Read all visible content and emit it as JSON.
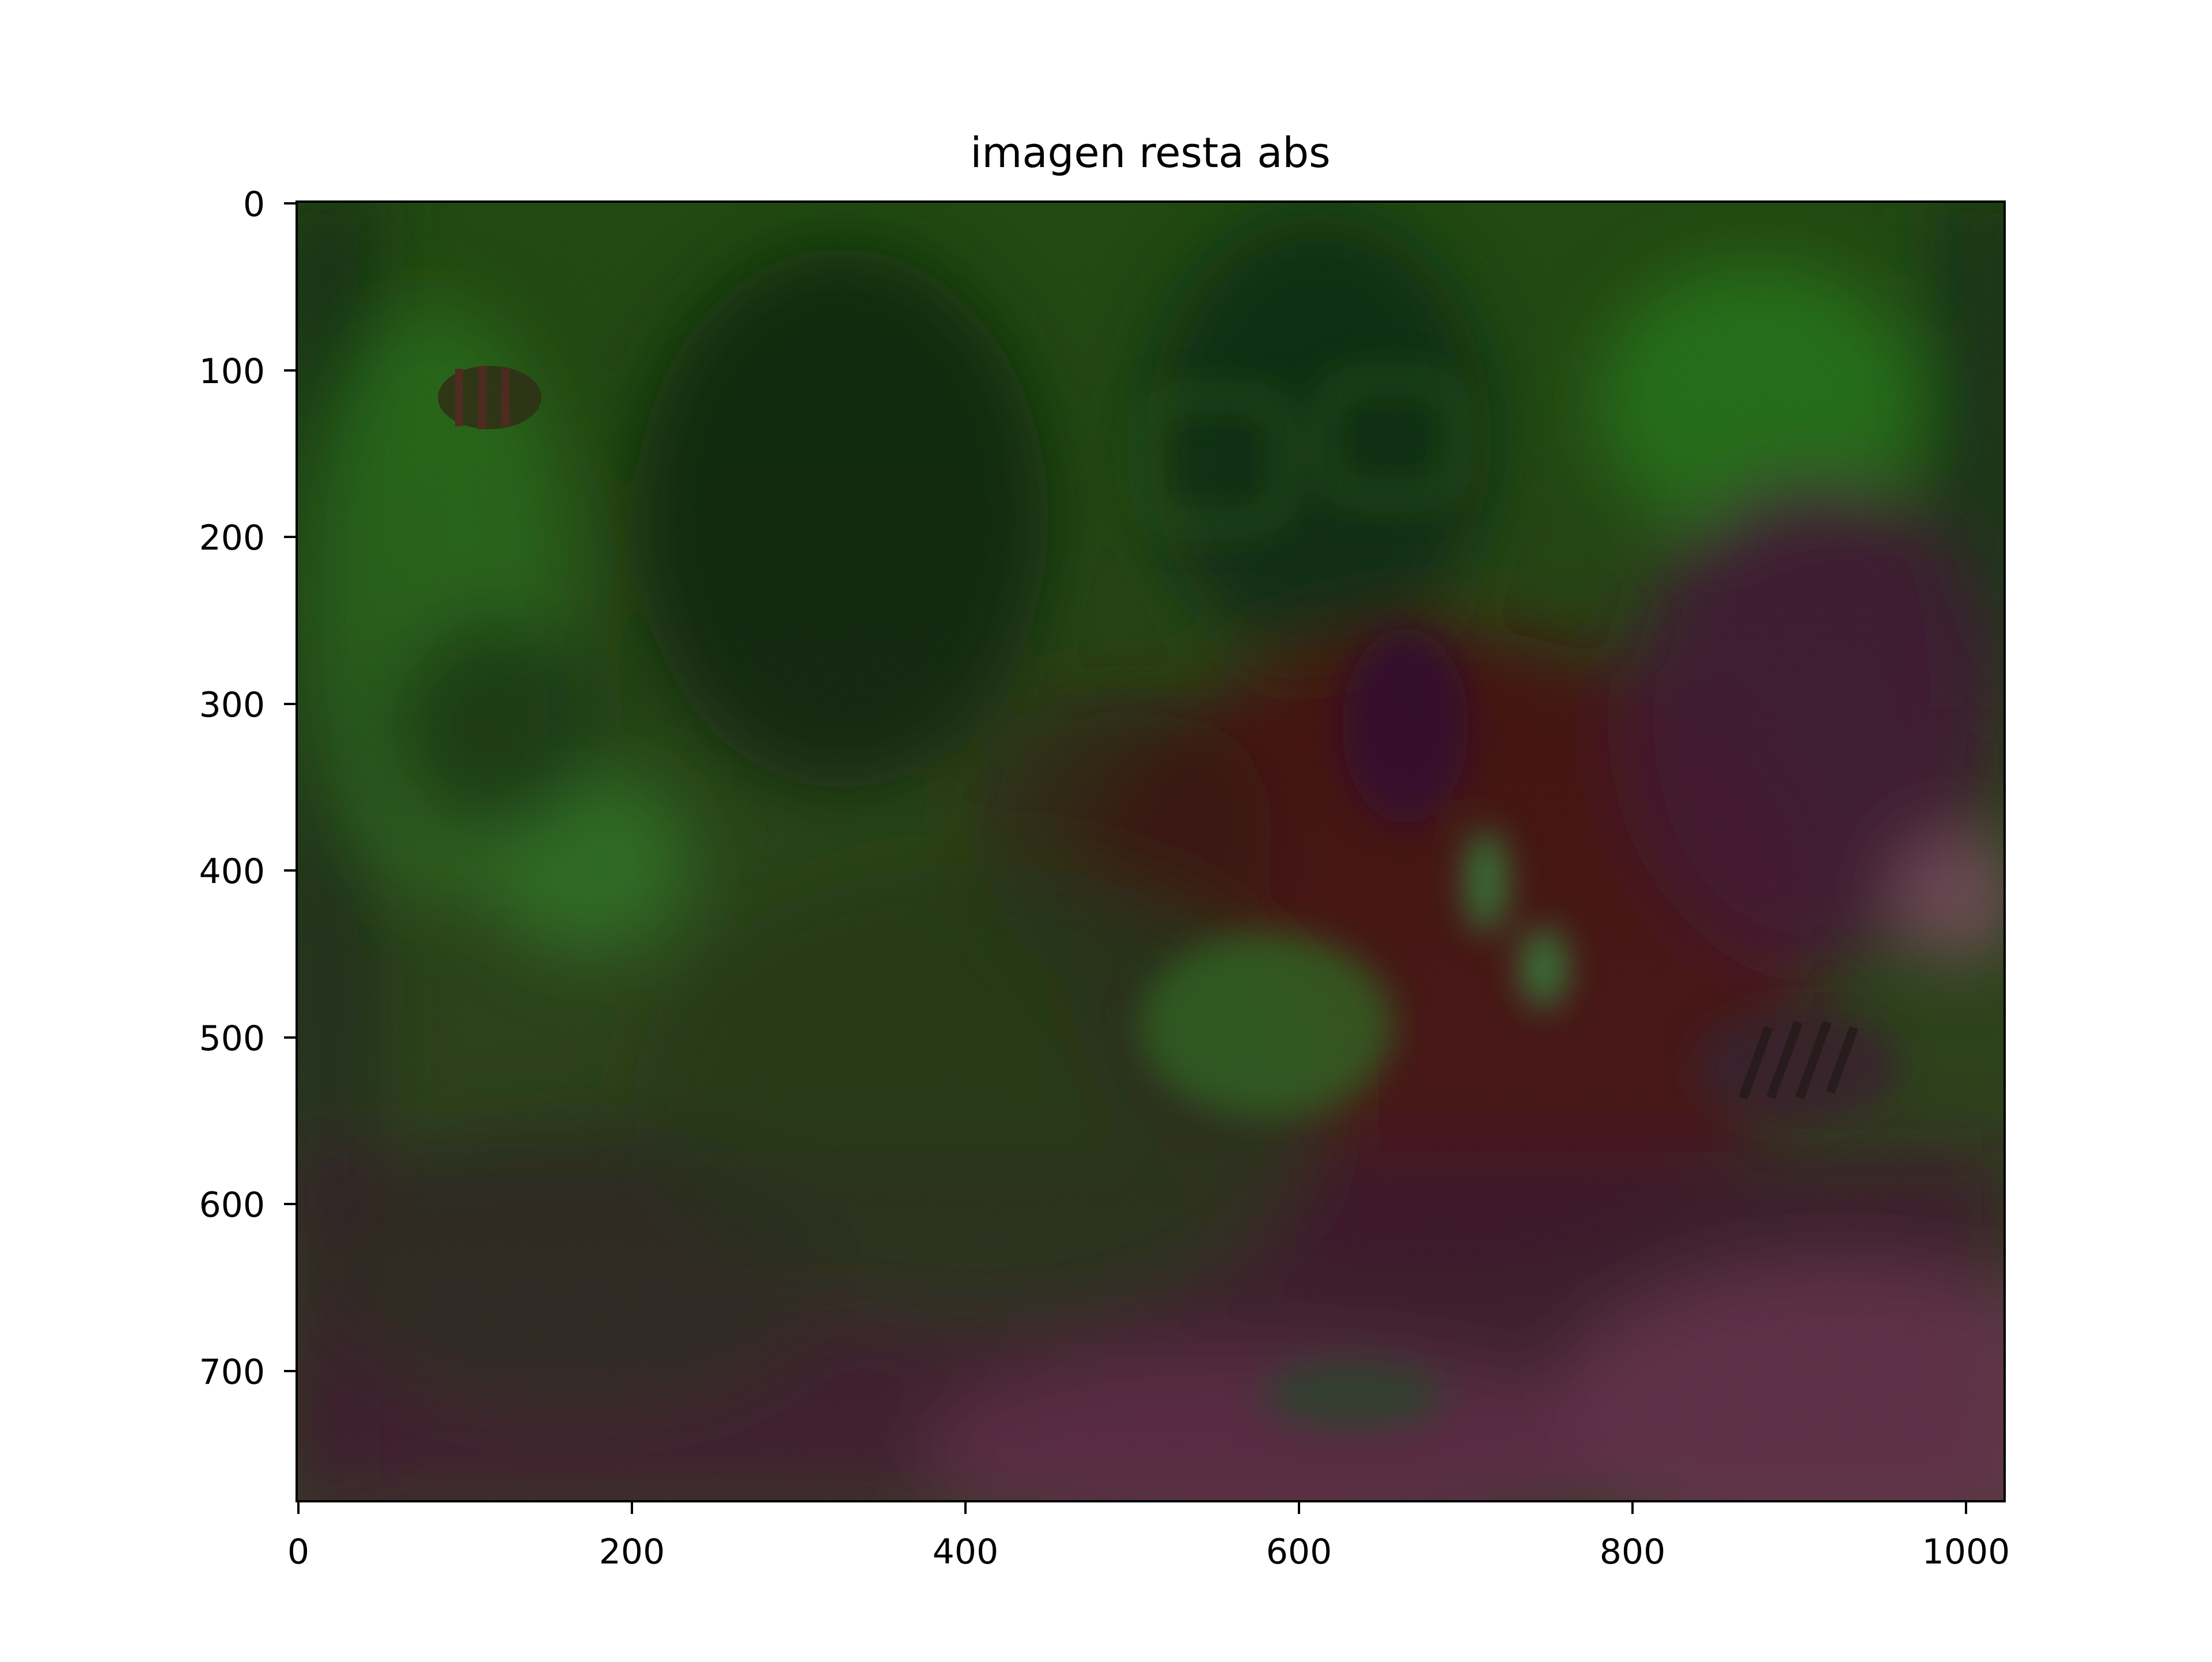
{
  "figure": {
    "title": "imagen resta abs",
    "xticks": [
      "0",
      "200",
      "400",
      "600",
      "800",
      "1000"
    ],
    "yticks": [
      "0",
      "100",
      "200",
      "300",
      "400",
      "500",
      "600",
      "700"
    ]
  },
  "image": {
    "colors": {
      "base_green": "#2a5a16",
      "dark_green": "#10320e",
      "bright_green": "#2f9a24",
      "maroon": "#4a1422",
      "dark_red": "#5a0d0d",
      "purple": "#4f1f40",
      "pink": "#8a4a6a",
      "axes": "#000000"
    }
  }
}
